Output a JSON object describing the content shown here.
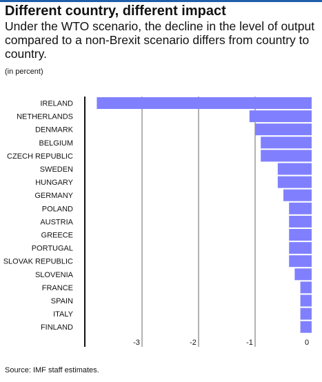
{
  "header": {
    "title": "Different country, different impact",
    "subtitle": "Under the WTO scenario, the decline in the level of output compared to a non-Brexit scenario differs from country to country.",
    "unit": "(in percent)"
  },
  "footer": {
    "source": "Source: IMF staff estimates."
  },
  "colors": {
    "bar": "#8080ff",
    "grid": "#666666",
    "axis": "#111111",
    "top_rule": "#1f5fa8"
  },
  "chart_data": {
    "type": "bar",
    "orientation": "horizontal",
    "title": "Different country, different impact",
    "xlabel": "",
    "ylabel": "",
    "xlim": [
      -4,
      0
    ],
    "xticks": [
      -3,
      -2,
      -1,
      0
    ],
    "grid": true,
    "categories": [
      "IRELAND",
      "NETHERLANDS",
      "DENMARK",
      "BELGIUM",
      "CZECH REPUBLIC",
      "SWEDEN",
      "HUNGARY",
      "GERMANY",
      "POLAND",
      "AUSTRIA",
      "GREECE",
      "PORTUGAL",
      "SLOVAK REPUBLIC",
      "SLOVENIA",
      "FRANCE",
      "SPAIN",
      "ITALY",
      "FINLAND"
    ],
    "values": [
      -3.8,
      -1.1,
      -1.0,
      -0.9,
      -0.9,
      -0.6,
      -0.6,
      -0.5,
      -0.4,
      -0.4,
      -0.4,
      -0.4,
      -0.4,
      -0.3,
      -0.2,
      -0.2,
      -0.2,
      -0.2
    ]
  }
}
